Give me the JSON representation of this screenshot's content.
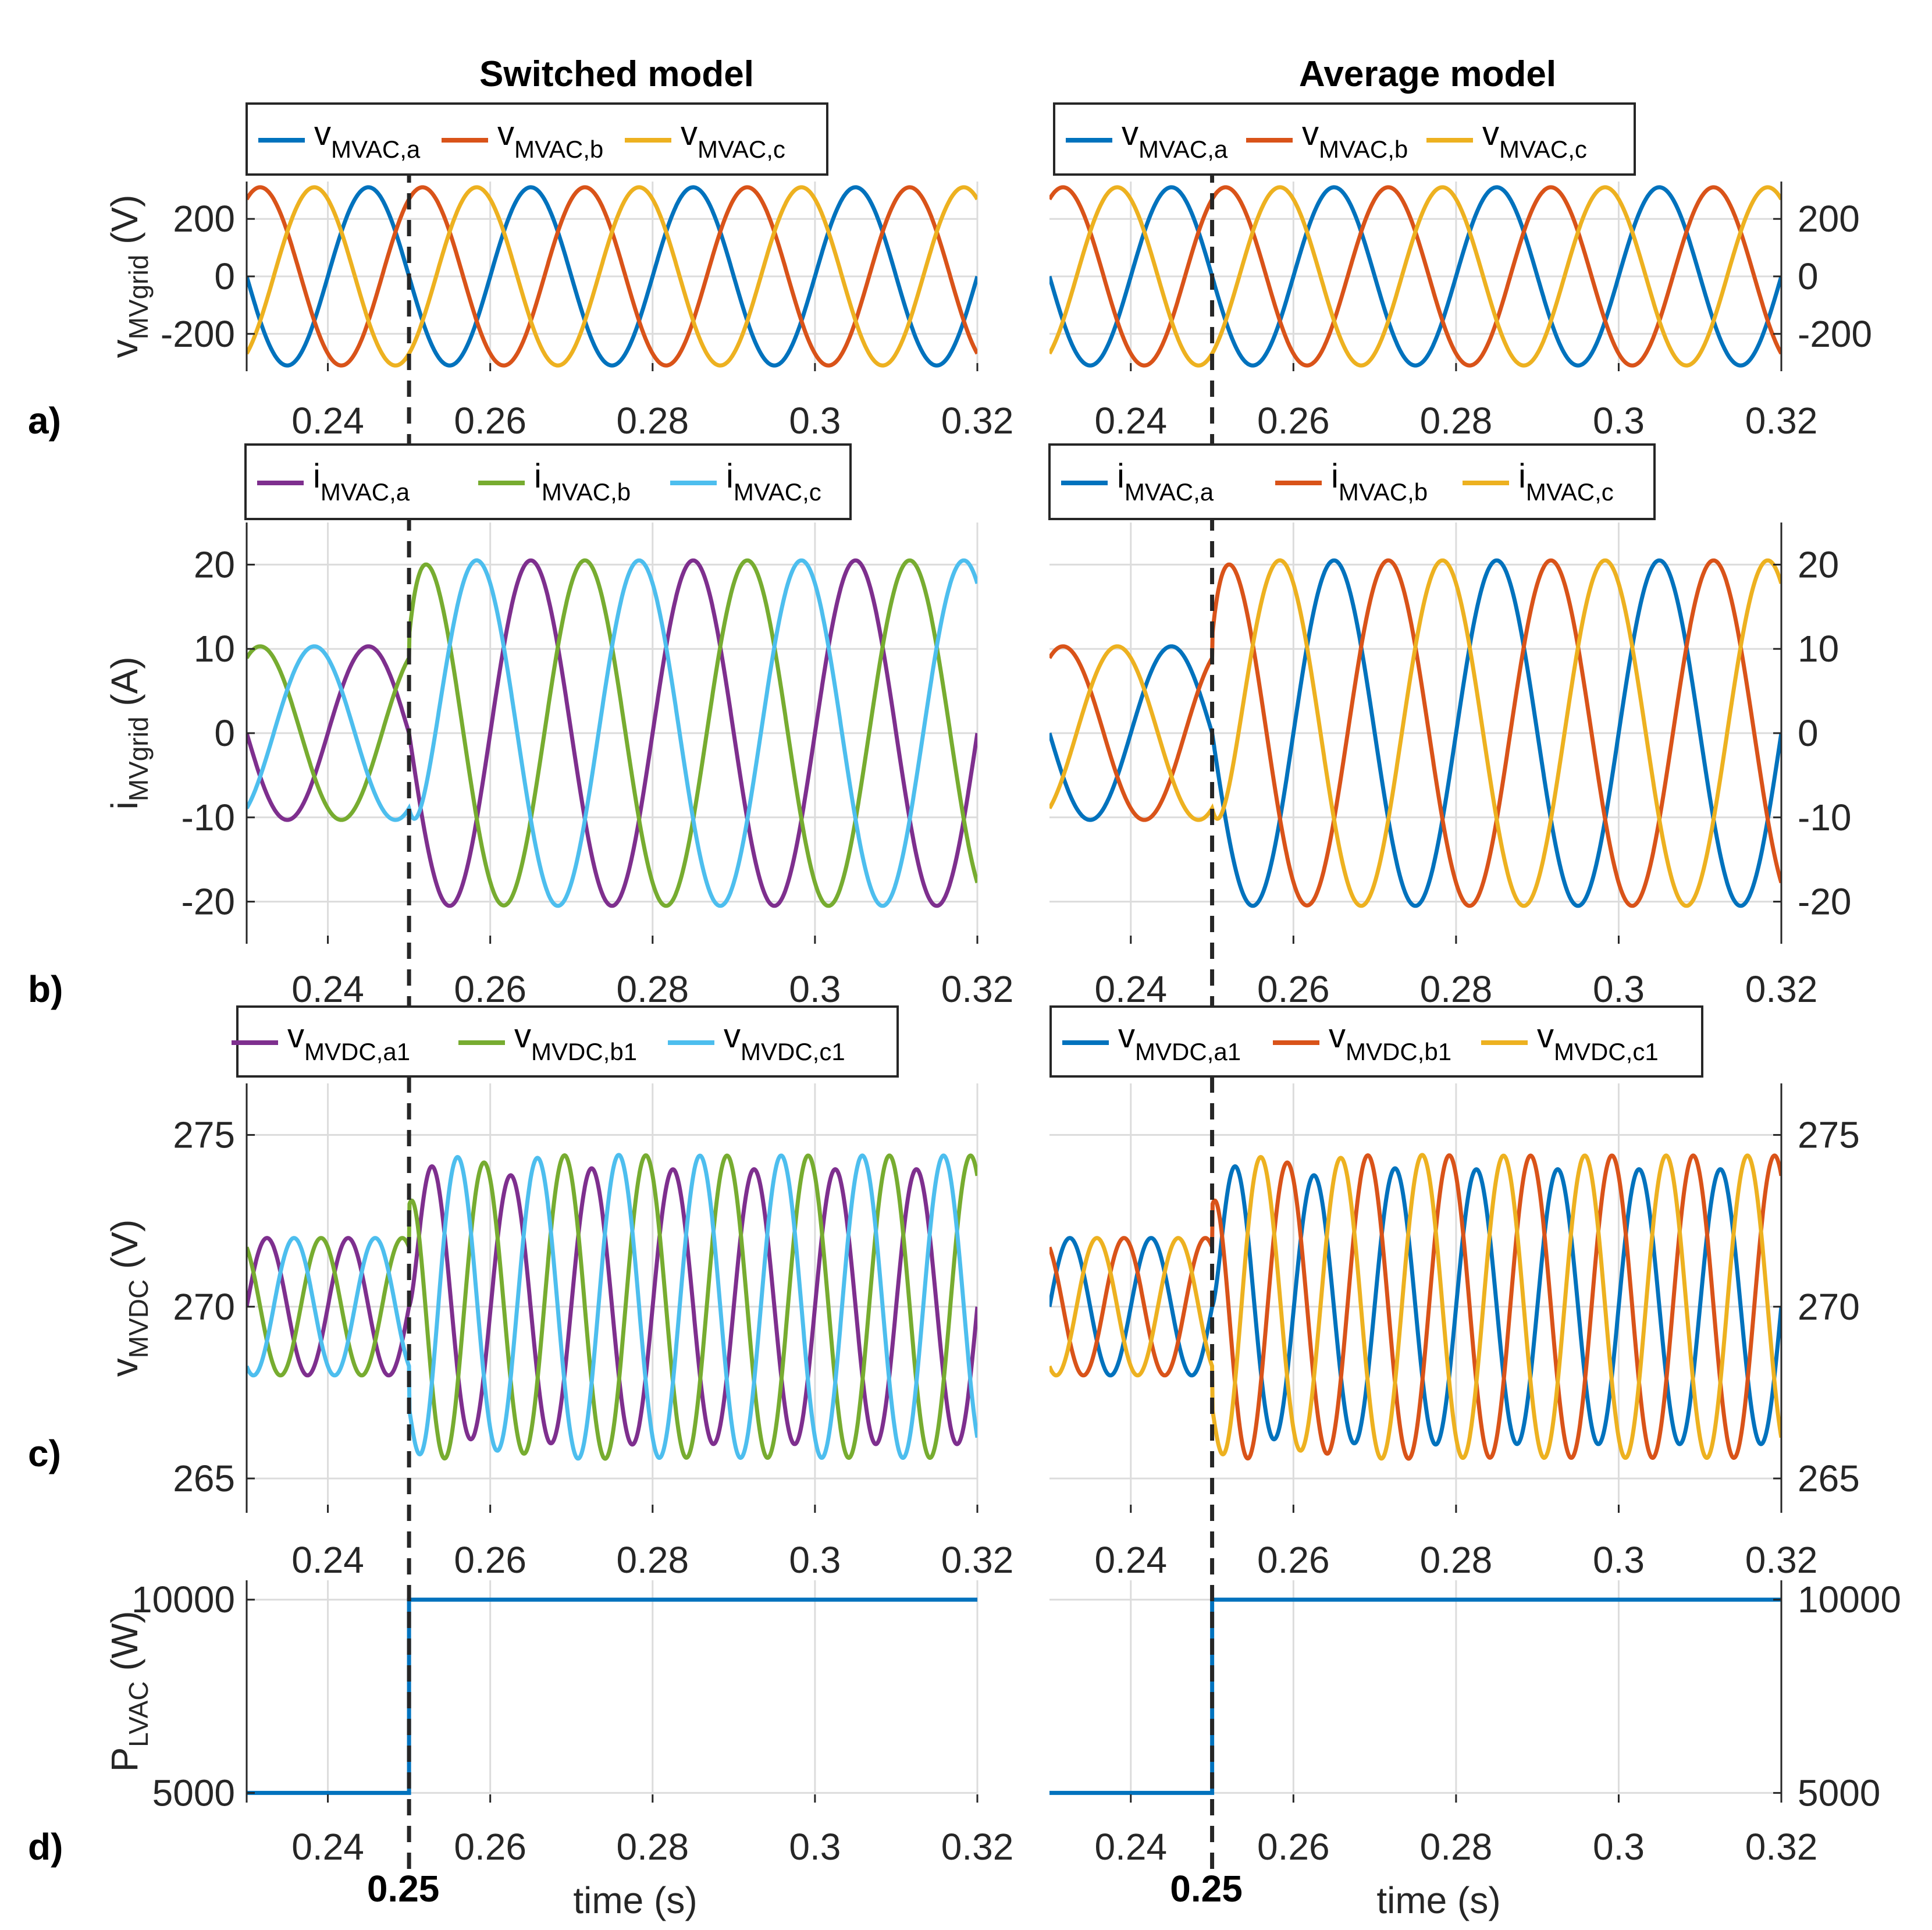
{
  "columns": [
    {
      "title": "Switched model"
    },
    {
      "title": "Average model"
    }
  ],
  "colors": {
    "blue": "#0072BD",
    "orange": "#D95319",
    "yellow": "#EDB120",
    "purple": "#7E2F8E",
    "green": "#77AC30",
    "cyan": "#4DBEEE"
  },
  "xaxis": {
    "ticks": [
      "0.24",
      "0.26",
      "0.28",
      "0.3",
      "0.32"
    ],
    "label": "time (s)",
    "marker": "0.25"
  },
  "rows": [
    {
      "letter": "a)",
      "ylabel": {
        "main": "v",
        "sub": "MVgrid",
        "unit": " (V)"
      },
      "yticks": [
        "200",
        "0",
        "-200"
      ],
      "legends": [
        [
          {
            "main": "v",
            "sub": "MVAC,a"
          },
          {
            "main": "v",
            "sub": "MVAC,b"
          },
          {
            "main": "v",
            "sub": "MVAC,c"
          }
        ],
        [
          {
            "main": "v",
            "sub": "MVAC,a"
          },
          {
            "main": "v",
            "sub": "MVAC,b"
          },
          {
            "main": "v",
            "sub": "MVAC,c"
          }
        ]
      ]
    },
    {
      "letter": "b)",
      "ylabel": {
        "main": "i",
        "sub": "MVgrid",
        "unit": " (A)"
      },
      "yticks": [
        "20",
        "10",
        "0",
        "-10",
        "-20"
      ],
      "legends": [
        [
          {
            "main": "i",
            "sub": "MVAC,a"
          },
          {
            "main": "i",
            "sub": "MVAC,b"
          },
          {
            "main": "i",
            "sub": "MVAC,c"
          }
        ],
        [
          {
            "main": "i",
            "sub": "MVAC,a"
          },
          {
            "main": "i",
            "sub": "MVAC,b"
          },
          {
            "main": "i",
            "sub": "MVAC,c"
          }
        ]
      ]
    },
    {
      "letter": "c)",
      "ylabel": {
        "main": "v",
        "sub": "MVDC",
        "unit": " (V)"
      },
      "yticks": [
        "275",
        "270",
        "265"
      ],
      "legends": [
        [
          {
            "main": "v",
            "sub": "MVDC,a1"
          },
          {
            "main": "v",
            "sub": "MVDC,b1"
          },
          {
            "main": "v",
            "sub": "MVDC,c1"
          }
        ],
        [
          {
            "main": "v",
            "sub": "MVDC,a1"
          },
          {
            "main": "v",
            "sub": "MVDC,b1"
          },
          {
            "main": "v",
            "sub": "MVDC,c1"
          }
        ]
      ]
    },
    {
      "letter": "d)",
      "ylabel": {
        "main": "P",
        "sub": "LVAC",
        "unit": " (W)"
      },
      "yticks": [
        "10000",
        "5000"
      ],
      "legends": [
        [],
        []
      ]
    }
  ],
  "chart_data": [
    {
      "type": "line",
      "panel": "a",
      "x_range": [
        0.23,
        0.32
      ],
      "ylim": [
        -330,
        330
      ],
      "yticks": [
        200,
        0,
        -200
      ],
      "grid": true,
      "description_of_series": "three-phase sinusoids, 50 Hz, amplitude ~310 V, phases a/b/c at 0/-120/+120 deg",
      "series": [
        {
          "name": "v_MVAC,a",
          "amplitude": 310,
          "freq_hz": 50,
          "phase_deg": 0
        },
        {
          "name": "v_MVAC,b",
          "amplitude": 310,
          "freq_hz": 50,
          "phase_deg": -120
        },
        {
          "name": "v_MVAC,c",
          "amplitude": 310,
          "freq_hz": 50,
          "phase_deg": 120
        }
      ]
    },
    {
      "type": "line",
      "panel": "b",
      "x_range": [
        0.23,
        0.32
      ],
      "ylim": [
        -25,
        25
      ],
      "yticks": [
        20,
        10,
        0,
        -10,
        -20
      ],
      "grid": true,
      "step_time": 0.25,
      "series": [
        {
          "name": "i_MVAC,a",
          "amplitude_before": 10.3,
          "amplitude_after": 20.5,
          "freq_hz": 50,
          "phase_deg": 0
        },
        {
          "name": "i_MVAC,b",
          "amplitude_before": 10.3,
          "amplitude_after": 20.5,
          "freq_hz": 50,
          "phase_deg": -120
        },
        {
          "name": "i_MVAC,c",
          "amplitude_before": 10.3,
          "amplitude_after": 20.5,
          "freq_hz": 50,
          "phase_deg": 120
        }
      ],
      "transient_peak": 24.2
    },
    {
      "type": "line",
      "panel": "c",
      "x_range": [
        0.23,
        0.32
      ],
      "ylim": [
        264,
        276.5
      ],
      "yticks": [
        275,
        270,
        265
      ],
      "grid": true,
      "step_time": 0.25,
      "series": [
        {
          "name": "v_MVDC,a1",
          "mean": 270,
          "amplitude_before": 2,
          "amplitude_after": 4,
          "freq_hz": 100,
          "phase_deg": 0
        },
        {
          "name": "v_MVDC,b1",
          "mean": 270,
          "amplitude_before": 2,
          "amplitude_after": 4.5,
          "freq_hz": 100,
          "phase_deg": 120
        },
        {
          "name": "v_MVDC,c1",
          "mean": 270,
          "amplitude_before": 2,
          "amplitude_after": 4.5,
          "freq_hz": 100,
          "phase_deg": 240
        }
      ],
      "peak": 275.2,
      "trough": 264.4
    },
    {
      "type": "line",
      "panel": "d",
      "x_range": [
        0.23,
        0.32
      ],
      "ylim": [
        4750,
        10500
      ],
      "yticks": [
        10000,
        5000
      ],
      "grid": true,
      "series": [
        {
          "name": "P_LVAC",
          "x": [
            0.23,
            0.25,
            0.25,
            0.32
          ],
          "y": [
            5000,
            5000,
            10000,
            10000
          ]
        }
      ]
    }
  ]
}
